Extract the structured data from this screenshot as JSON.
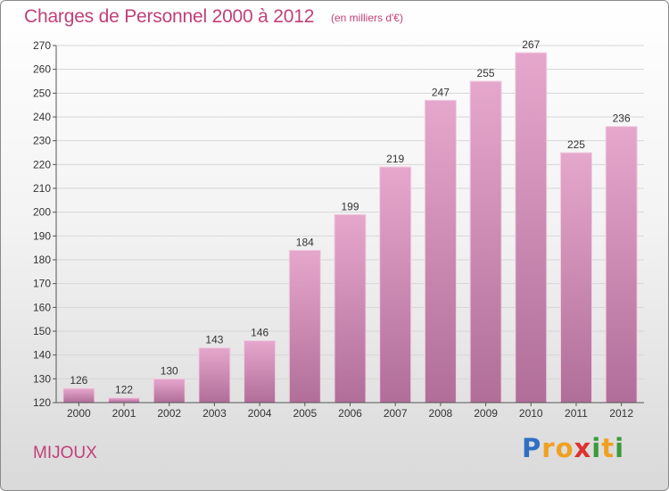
{
  "header": {
    "title": "Charges de Personnel 2000 à 2012",
    "subtitle": "(en milliers d'€)"
  },
  "footer": {
    "town": "MIJOUX",
    "logo_text": "Proxiti",
    "logo_letters": [
      {
        "ch": "P",
        "color": "#2f6fc4"
      },
      {
        "ch": "r",
        "color": "#f0a020"
      },
      {
        "ch": "o",
        "color": "#f0a020"
      },
      {
        "ch": "x",
        "color": "#e03030"
      },
      {
        "ch": "i",
        "color": "#3a9a3a"
      },
      {
        "ch": "t",
        "color": "#f0a020"
      },
      {
        "ch": "i",
        "color": "#3a9a3a"
      }
    ]
  },
  "colors": {
    "accent": "#c0407a",
    "bar_top": "#e6a7cd",
    "bar_bottom": "#b06e98"
  },
  "chart_data": {
    "type": "bar",
    "title": "Charges de Personnel 2000 à 2012",
    "subtitle": "(en milliers d'€)",
    "xlabel": "",
    "ylabel": "",
    "categories": [
      "2000",
      "2001",
      "2002",
      "2003",
      "2004",
      "2005",
      "2006",
      "2007",
      "2008",
      "2009",
      "2010",
      "2011",
      "2012"
    ],
    "values": [
      126,
      122,
      130,
      143,
      146,
      184,
      199,
      219,
      247,
      255,
      267,
      225,
      236
    ],
    "ylim": [
      120,
      270
    ],
    "yticks": [
      120,
      130,
      140,
      150,
      160,
      170,
      180,
      190,
      200,
      210,
      220,
      230,
      240,
      250,
      260,
      270
    ],
    "grid": true,
    "legend": "none"
  }
}
